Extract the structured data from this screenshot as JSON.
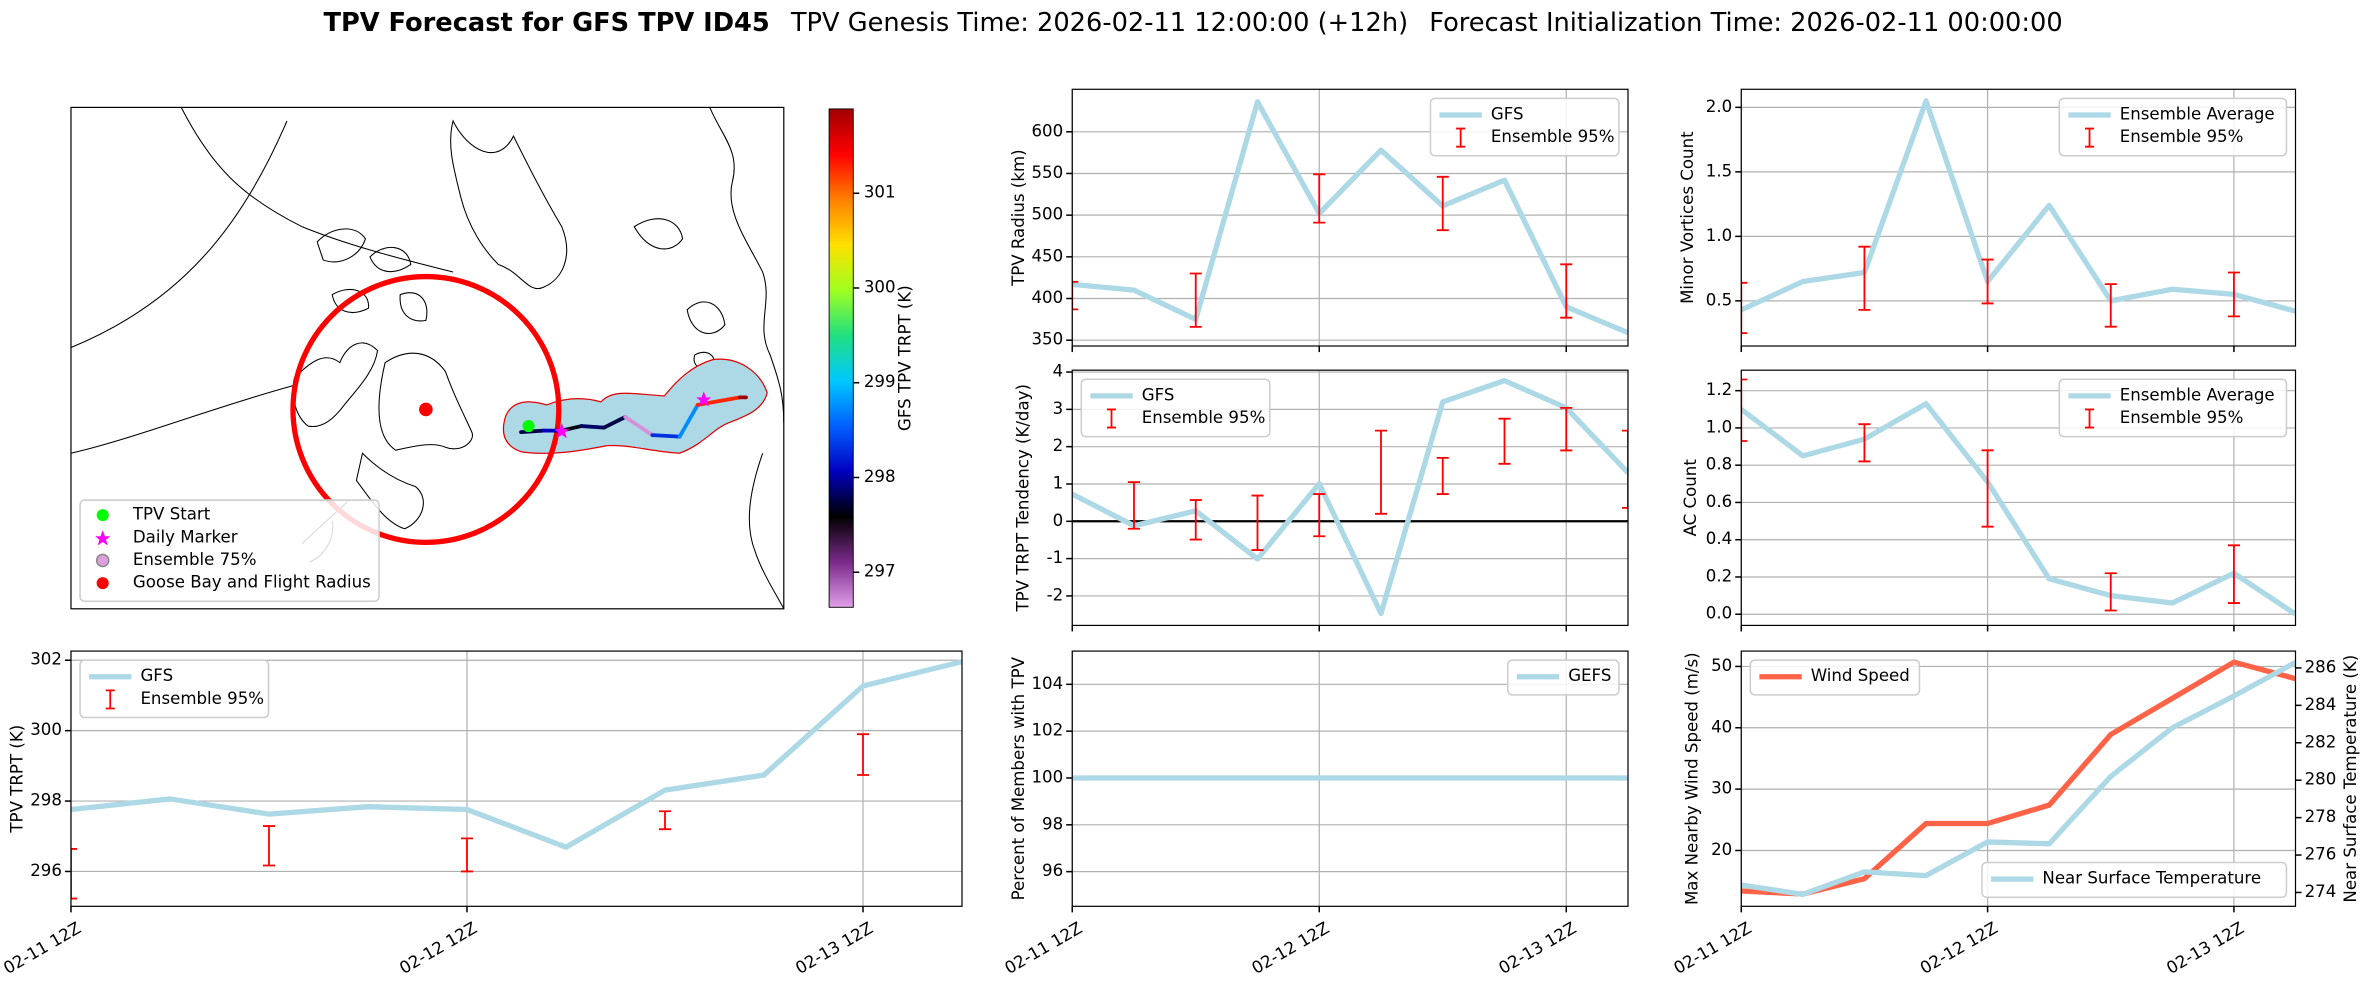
{
  "title": [
    "TPV Forecast for GFS TPV ID45",
    "TPV Genesis Time: 2026-02-11 12:00:00 (+12h)",
    "Forecast Initialization Time: 2026-02-11 00:00:00"
  ],
  "chart_data": [
    {
      "type": "map",
      "colorbar_label": "GFS TPV TRPT (K)",
      "clim": [
        296.63,
        301.89
      ],
      "cticks": [
        297,
        298,
        299,
        300,
        301
      ],
      "colormap": [
        "#e0a0e8",
        "#7a2a8a",
        "#000000",
        "#0000c0",
        "#0060ff",
        "#00c8ff",
        "#20e080",
        "#a0ff20",
        "#ffe000",
        "#ff8000",
        "#ff0000",
        "#a00000"
      ],
      "legend": [
        "TPV Start",
        "Daily Marker",
        "Ensemble 75%",
        "Goose Bay and Flight Radius"
      ]
    },
    {
      "type": "line",
      "ylabel": "TPV Radius (km)",
      "categories": [
        null,
        null,
        null,
        null,
        null,
        null,
        null,
        null,
        null,
        null
      ],
      "ylim": [
        343,
        651
      ],
      "yticks": [
        350,
        400,
        450,
        500,
        550,
        600
      ],
      "grid": true,
      "legend": "upper right",
      "series": [
        {
          "name": "GFS",
          "color": "#add8e6",
          "values": [
            417,
            410,
            375,
            636,
            502,
            578,
            511,
            542,
            390,
            359
          ]
        },
        {
          "name": "Ensemble 95%",
          "type": "errorbar",
          "color": "#ff0000",
          "low": [
            387,
            null,
            366,
            null,
            491,
            null,
            482,
            null,
            377,
            null
          ],
          "high": [
            420,
            null,
            430,
            null,
            549,
            null,
            546,
            null,
            441,
            null
          ]
        }
      ]
    },
    {
      "type": "line",
      "ylabel": "Minor Vortices Count",
      "categories": [
        null,
        null,
        null,
        null,
        null,
        null,
        null,
        null,
        null,
        null
      ],
      "ylim": [
        0.15,
        2.14
      ],
      "yticks": [
        0.5,
        {
          "value": 1,
          "label": "1.0"
        },
        1.5,
        {
          "value": 2,
          "label": "2.0"
        }
      ],
      "grid": true,
      "legend": "upper right",
      "series": [
        {
          "name": "Ensemble Average",
          "color": "#add8e6",
          "values": [
            0.43,
            0.65,
            0.72,
            2.05,
            0.65,
            1.24,
            0.5,
            0.59,
            0.55,
            0.42
          ]
        },
        {
          "name": "Ensemble 95%",
          "type": "errorbar",
          "color": "#ff0000",
          "low": [
            0.25,
            null,
            0.43,
            null,
            0.48,
            null,
            0.3,
            null,
            0.38,
            null
          ],
          "high": [
            0.64,
            null,
            0.92,
            null,
            0.82,
            null,
            0.63,
            null,
            0.72,
            null
          ]
        }
      ]
    },
    {
      "type": "line",
      "ylabel": "TPV TRPT Tendency (K/day)",
      "categories": [
        null,
        null,
        null,
        null,
        null,
        null,
        null,
        null,
        null,
        null
      ],
      "ylim": [
        -2.79,
        4.05
      ],
      "yticks": [
        -2,
        -1,
        0,
        1,
        2,
        3,
        4
      ],
      "grid": true,
      "legend": "upper left",
      "hline": 0,
      "series": [
        {
          "name": "GFS",
          "color": "#add8e6",
          "values": [
            0.73,
            -0.12,
            0.28,
            -1.01,
            1.01,
            -2.47,
            3.2,
            3.77,
            3.04,
            1.3
          ]
        },
        {
          "name": "Ensemble 95%",
          "type": "errorbar",
          "color": "#ff0000",
          "low": [
            null,
            -0.2,
            -0.49,
            -0.77,
            -0.4,
            0.2,
            0.73,
            1.54,
            1.9,
            0.36
          ],
          "high": [
            null,
            1.05,
            0.57,
            0.69,
            0.73,
            2.43,
            1.7,
            2.75,
            3.04,
            2.43
          ]
        }
      ]
    },
    {
      "type": "line",
      "ylabel": "AC Count",
      "categories": [
        null,
        null,
        null,
        null,
        null,
        null,
        null,
        null,
        null,
        null
      ],
      "ylim": [
        -0.06,
        1.31
      ],
      "yticks": [
        {
          "value": 0,
          "label": "0.0"
        },
        0.2,
        0.4,
        0.6,
        0.8,
        {
          "value": 1,
          "label": "1.0"
        },
        1.2
      ],
      "grid": true,
      "legend": "upper right",
      "series": [
        {
          "name": "Ensemble Average",
          "color": "#add8e6",
          "values": [
            1.1,
            0.85,
            0.94,
            1.13,
            0.71,
            0.19,
            0.1,
            0.06,
            0.22,
            0
          ]
        },
        {
          "name": "Ensemble 95%",
          "type": "errorbar",
          "color": "#ff0000",
          "low": [
            0.93,
            null,
            0.82,
            null,
            0.47,
            null,
            0.02,
            null,
            0.06,
            null
          ],
          "high": [
            1.26,
            null,
            1.02,
            null,
            0.88,
            null,
            0.22,
            null,
            0.37,
            null
          ]
        }
      ]
    },
    {
      "type": "line",
      "ylabel": "TPV TRPT (K)",
      "categories": [
        "02-11 12Z",
        null,
        null,
        null,
        "02-12 12Z",
        null,
        null,
        null,
        "02-13 12Z",
        null
      ],
      "ylim": [
        295.01,
        302.26
      ],
      "yticks": [
        296,
        298,
        300,
        302
      ],
      "grid": true,
      "legend": "upper left",
      "series": [
        {
          "name": "GFS",
          "color": "#add8e6",
          "values": [
            297.76,
            298.06,
            297.63,
            297.84,
            297.76,
            296.69,
            298.31,
            298.74,
            301.27,
            301.96
          ]
        },
        {
          "name": "Ensemble 95%",
          "type": "errorbar",
          "color": "#ff0000",
          "low": [
            295.23,
            null,
            296.17,
            null,
            296.0,
            null,
            297.2,
            null,
            298.74,
            null
          ],
          "high": [
            296.64,
            null,
            297.29,
            null,
            296.94,
            null,
            297.71,
            null,
            299.9,
            null
          ]
        }
      ]
    },
    {
      "type": "line",
      "ylabel": "Percent of Members with TPV",
      "categories": [
        "02-11 12Z",
        null,
        null,
        null,
        "02-12 12Z",
        null,
        null,
        null,
        "02-13 12Z",
        null
      ],
      "ylim": [
        94.52,
        105.42
      ],
      "yticks": [
        96,
        98,
        100,
        102,
        104
      ],
      "grid": true,
      "legend": "upper right",
      "series": [
        {
          "name": "GEFS",
          "color": "#add8e6",
          "values": [
            100,
            100,
            100,
            100,
            100,
            100,
            100,
            100,
            100,
            100
          ]
        }
      ]
    },
    {
      "type": "line",
      "ylabel": "Max Nearby Wind Speed (m/s)",
      "ylabel_color": "#ff6347",
      "y2label": "Near Surface Temperature (K)",
      "y2label_color": "#4169e1",
      "categories": [
        "02-11 12Z",
        null,
        null,
        null,
        "02-12 12Z",
        null,
        null,
        null,
        "02-13 12Z",
        null
      ],
      "ylim": [
        10.9,
        52.5
      ],
      "yticks": [
        20,
        30,
        40,
        50
      ],
      "y2lim": [
        273.26,
        286.9
      ],
      "y2ticks": [
        274,
        276,
        278,
        280,
        282,
        284,
        286
      ],
      "grid": true,
      "series": [
        {
          "name": "Wind Speed",
          "color": "#ff6347",
          "legend": "upper left",
          "values": [
            13.4,
            12.9,
            15.4,
            24.4,
            24.4,
            27.4,
            38.9,
            44.8,
            50.7,
            48
          ]
        },
        {
          "name": "Near Surface Temperature",
          "color": "#add8e6",
          "axis": "y2",
          "legend": "lower right",
          "values": [
            274.4,
            273.9,
            275.1,
            274.9,
            276.7,
            276.6,
            280.2,
            282.8,
            284.5,
            286.3
          ]
        }
      ]
    }
  ]
}
